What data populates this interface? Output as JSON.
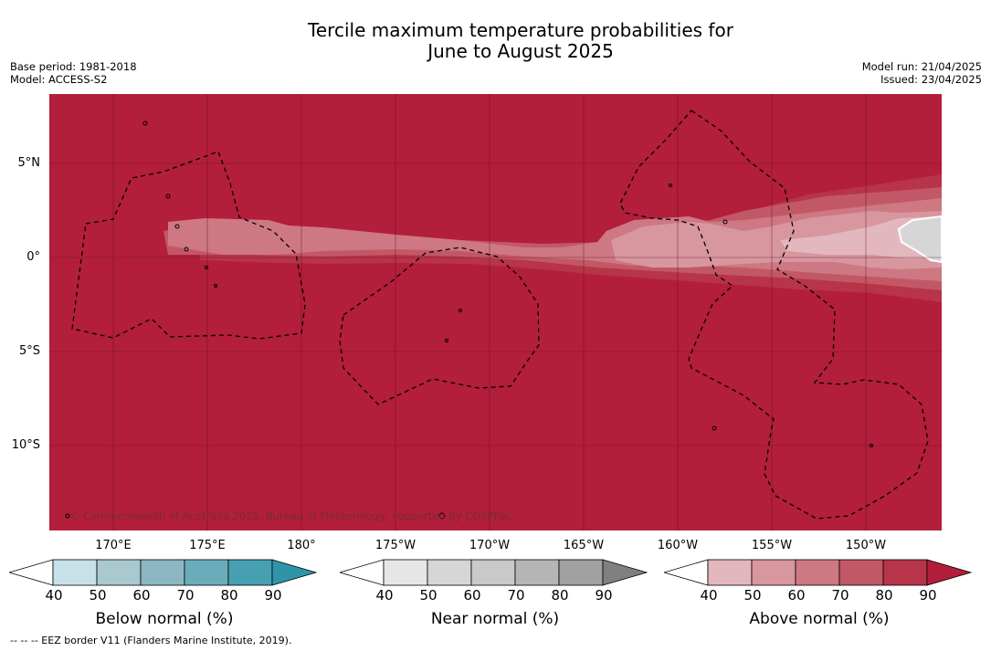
{
  "title": {
    "line1": "Tercile maximum temperature probabilities for",
    "line2": "June to August 2025"
  },
  "info_left": {
    "base_period": "Base period: 1981-2018",
    "model": "Model: ACCESS-S2"
  },
  "info_right": {
    "model_run": "Model run: 21/04/2025",
    "issued": "Issued: 23/04/2025"
  },
  "map": {
    "latitude_labels": [
      "5°N",
      "0°",
      "5°S",
      "10°S"
    ],
    "longitude_labels": [
      "170°E",
      "175°E",
      "180°",
      "175°W",
      "170°W",
      "165°W",
      "160°W",
      "155°W",
      "150°W"
    ],
    "copyright": "© Commonwealth of Australia 2025, Bureau of Meteorology, supported by COSPPac",
    "background_color": "#b31e3a"
  },
  "legend": {
    "below": {
      "title": "Below normal (%)",
      "ticks": [
        "40",
        "50",
        "60",
        "70",
        "80",
        "90"
      ],
      "colors": [
        "#c8e1e8",
        "#a9c9cf",
        "#8cb7c2",
        "#6bacba",
        "#47a0b1",
        "#2e95a9"
      ]
    },
    "near": {
      "title": "Near normal (%)",
      "ticks": [
        "40",
        "50",
        "60",
        "70",
        "80",
        "90"
      ],
      "colors": [
        "#e6e6e6",
        "#d6d6d6",
        "#c9c9c9",
        "#b5b5b5",
        "#a1a1a1",
        "#808080"
      ]
    },
    "above": {
      "title": "Above normal (%)",
      "ticks": [
        "40",
        "50",
        "60",
        "70",
        "80",
        "90"
      ],
      "colors": [
        "#e2b8be",
        "#d8969f",
        "#cd7882",
        "#c25866",
        "#b83448",
        "#b31e3a"
      ]
    }
  },
  "footnote": "--  --  -- EEZ border V11 (Flanders Marine Institute, 2019)."
}
